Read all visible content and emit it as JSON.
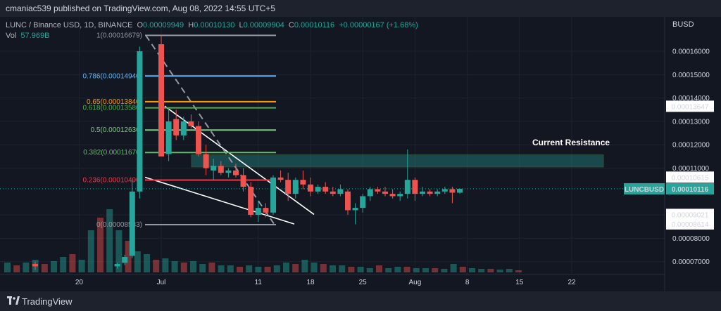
{
  "header": {
    "text": "cmaniac539 published on TradingView.com, Aug 08, 2022 14:55 UTC+5"
  },
  "legend": {
    "symbol": "LUNC / Binance USD, 1D, BINANCE",
    "open_label": "O",
    "open": "0.00009949",
    "high_label": "H",
    "high": "0.00010130",
    "low_label": "L",
    "low": "0.00009904",
    "close_label": "C",
    "close": "0.00010116",
    "change": "+0.00000167 (+1.68%)",
    "vol_label": "Vol",
    "vol": "57.969B"
  },
  "currency": "BUSD",
  "annotation": "Current Resistance",
  "footer": {
    "brand": "TradingView"
  },
  "colors": {
    "up": "#26a69a",
    "down": "#ef5350",
    "bg": "#131722",
    "grid": "#1f2330"
  },
  "chart_data": {
    "type": "candlestick",
    "symbol": "LUNCBUSD",
    "y_axis": {
      "min": 6.2e-05,
      "max": 0.000174,
      "ticks": [
        0.00016,
        0.00015,
        0.00014,
        0.00013,
        0.00012,
        0.00011,
        9e-05,
        8e-05,
        7e-05
      ],
      "tick_labels": [
        "0.00016000",
        "0.00015000",
        "0.00014000",
        "0.00013000",
        "0.00012000",
        "0.00011000",
        "0.00009000",
        "0.00008000",
        "0.00007000"
      ]
    },
    "x_axis": {
      "labels": [
        "20",
        "Jul",
        "11",
        "18",
        "25",
        "Aug",
        "8",
        "15",
        "22"
      ]
    },
    "price_labels": [
      {
        "text": "0.00013647",
        "value": 0.00013647,
        "style": "white"
      },
      {
        "text": "0.00010615",
        "value": 0.00010615,
        "style": "white"
      },
      {
        "text": "0.00010116",
        "value": 0.00010116,
        "style": "green",
        "name": "LUNCBUSD"
      },
      {
        "text": "0.00009021",
        "value": 9.021e-05,
        "style": "white"
      },
      {
        "text": "0.00008614",
        "value": 8.614e-05,
        "style": "white"
      }
    ],
    "fibonacci": [
      {
        "label": "1(0.00016679)",
        "value": 0.00016679,
        "color": "#9598a1"
      },
      {
        "label": "0.786(0.00014940)",
        "value": 0.0001494,
        "color": "#64b5f6"
      },
      {
        "label": "0.65(0.00013840)",
        "value": 0.0001384,
        "color": "#ff9800"
      },
      {
        "label": "0.618(0.00013580)",
        "value": 0.0001358,
        "color": "#4caf50"
      },
      {
        "label": "0.5(0.00012630)",
        "value": 0.0001263,
        "color": "#81c784"
      },
      {
        "label": "0.382(0.00011670)",
        "value": 0.0001167,
        "color": "#66bb6a"
      },
      {
        "label": "0.236(0.00010490)",
        "value": 0.0001049,
        "color": "#f23645"
      },
      {
        "label": "0(0.00008583)",
        "value": 8.583e-05,
        "color": "#9598a1"
      }
    ],
    "candles": [
      {
        "d": 0,
        "o": 6.9e-05,
        "h": 7e-05,
        "l": 6.65e-05,
        "c": 6.8e-05
      },
      {
        "d": 11,
        "o": 6.8e-05,
        "h": 6.95e-05,
        "l": 6.7e-05,
        "c": 6.9e-05
      },
      {
        "d": 12,
        "o": 6.95e-05,
        "h": 7.3e-05,
        "l": 6.85e-05,
        "c": 7.2e-05
      },
      {
        "d": 13,
        "o": 7.25e-05,
        "h": 0.000105,
        "l": 7.15e-05,
        "c": 0.0001
      },
      {
        "d": 14,
        "o": 0.0001,
        "h": 0.000162,
        "l": 9.7e-05,
        "c": 0.00016
      },
      {
        "d": 15,
        "o": 0.000163,
        "h": 0.00016679,
        "l": 0.000115,
        "c": 0.000115
      },
      {
        "d": 16,
        "o": 0.000116,
        "h": 0.000136,
        "l": 0.000113,
        "c": 0.00013
      },
      {
        "d": 17,
        "o": 0.000131,
        "h": 0.000135,
        "l": 0.000122,
        "c": 0.000124
      },
      {
        "d": 18,
        "o": 0.000124,
        "h": 0.000132,
        "l": 0.000122,
        "c": 0.00013
      },
      {
        "d": 19,
        "o": 0.00013,
        "h": 0.000133,
        "l": 0.000127,
        "c": 0.000128
      },
      {
        "d": 20,
        "o": 0.000128,
        "h": 0.00013,
        "l": 0.000115,
        "c": 0.000116
      },
      {
        "d": 21,
        "o": 0.000116,
        "h": 0.00012,
        "l": 0.000107,
        "c": 0.00011
      },
      {
        "d": 22,
        "o": 0.000109,
        "h": 0.000114,
        "l": 0.000105,
        "c": 0.000111
      },
      {
        "d": 23,
        "o": 0.000111,
        "h": 0.000113,
        "l": 0.000107,
        "c": 0.000108
      },
      {
        "d": 24,
        "o": 0.000108,
        "h": 0.00011,
        "l": 0.000106,
        "c": 0.000109
      },
      {
        "d": 25,
        "o": 0.000109,
        "h": 0.000112,
        "l": 0.000106,
        "c": 0.000107
      },
      {
        "d": 26,
        "o": 0.000107,
        "h": 0.00011,
        "l": 0.0001,
        "c": 0.000102
      },
      {
        "d": 27,
        "o": 0.000102,
        "h": 0.000104,
        "l": 8.9e-05,
        "c": 9e-05
      },
      {
        "d": 28,
        "o": 9e-05,
        "h": 9.6e-05,
        "l": 8.7e-05,
        "c": 9.3e-05
      },
      {
        "d": 29,
        "o": 9.3e-05,
        "h": 9.5e-05,
        "l": 8.9e-05,
        "c": 9.1e-05
      },
      {
        "d": 30,
        "o": 9.1e-05,
        "h": 0.000107,
        "l": 9e-05,
        "c": 0.000106
      },
      {
        "d": 31,
        "o": 0.000106,
        "h": 0.000109,
        "l": 0.000104,
        "c": 0.000105
      },
      {
        "d": 32,
        "o": 0.000105,
        "h": 0.000108,
        "l": 9.6e-05,
        "c": 9.9e-05
      },
      {
        "d": 33,
        "o": 9.9e-05,
        "h": 0.000106,
        "l": 9.7e-05,
        "c": 0.000105
      },
      {
        "d": 34,
        "o": 0.000105,
        "h": 0.000109,
        "l": 0.000101,
        "c": 0.000103
      },
      {
        "d": 35,
        "o": 0.000103,
        "h": 0.000106,
        "l": 9.8e-05,
        "c": 0.0001
      },
      {
        "d": 36,
        "o": 0.0001,
        "h": 0.000103,
        "l": 9.9e-05,
        "c": 0.000102
      },
      {
        "d": 37,
        "o": 0.000102,
        "h": 0.000104,
        "l": 9.9e-05,
        "c": 0.0001
      },
      {
        "d": 38,
        "o": 0.0001,
        "h": 0.000102,
        "l": 9.8e-05,
        "c": 9.9e-05
      },
      {
        "d": 39,
        "o": 9.9e-05,
        "h": 0.000103,
        "l": 9.8e-05,
        "c": 0.000101
      },
      {
        "d": 40,
        "o": 0.0001,
        "h": 0.000101,
        "l": 9e-05,
        "c": 9.2e-05
      },
      {
        "d": 41,
        "o": 9.2e-05,
        "h": 9.5e-05,
        "l": 8.6e-05,
        "c": 9.3e-05
      },
      {
        "d": 42,
        "o": 9.3e-05,
        "h": 9.9e-05,
        "l": 9.1e-05,
        "c": 9.8e-05
      },
      {
        "d": 43,
        "o": 9.8e-05,
        "h": 0.000102,
        "l": 9.6e-05,
        "c": 0.000101
      },
      {
        "d": 44,
        "o": 0.000101,
        "h": 0.000102,
        "l": 9.9e-05,
        "c": 0.0001
      },
      {
        "d": 45,
        "o": 0.0001,
        "h": 0.000102,
        "l": 9.8e-05,
        "c": 9.9e-05
      },
      {
        "d": 46,
        "o": 9.9e-05,
        "h": 0.000101,
        "l": 9.7e-05,
        "c": 9.8e-05
      },
      {
        "d": 47,
        "o": 9.8e-05,
        "h": 0.0001,
        "l": 9.6e-05,
        "c": 9.9e-05
      },
      {
        "d": 48,
        "o": 9.9e-05,
        "h": 0.000118,
        "l": 9.7e-05,
        "c": 0.000105
      },
      {
        "d": 49,
        "o": 0.000105,
        "h": 0.000106,
        "l": 9.6e-05,
        "c": 9.9e-05
      },
      {
        "d": 50,
        "o": 9.9e-05,
        "h": 0.000102,
        "l": 9.8e-05,
        "c": 0.0001
      },
      {
        "d": 51,
        "o": 0.0001,
        "h": 0.000101,
        "l": 9.8e-05,
        "c": 9.9e-05
      },
      {
        "d": 52,
        "o": 9.9e-05,
        "h": 0.000101,
        "l": 9.8e-05,
        "c": 0.0001
      },
      {
        "d": 53,
        "o": 0.0001,
        "h": 0.000102,
        "l": 9.9e-05,
        "c": 0.000101
      },
      {
        "d": 54,
        "o": 0.000101,
        "h": 0.000102,
        "l": 9.5e-05,
        "c": 9.95e-05
      },
      {
        "d": 55,
        "o": 9.949e-05,
        "h": 0.0001013,
        "l": 9.904e-05,
        "c": 0.00010116
      }
    ]
  }
}
